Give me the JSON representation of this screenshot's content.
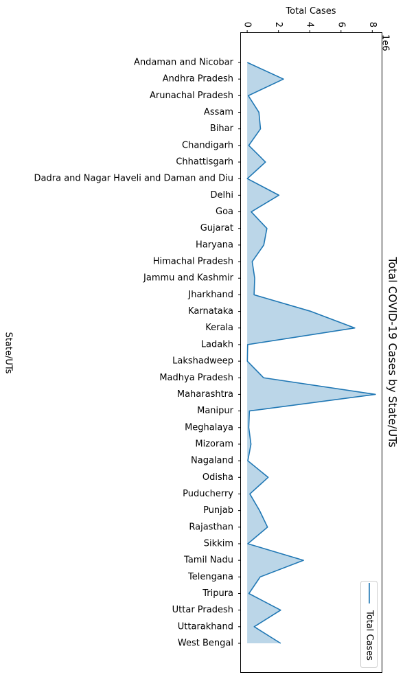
{
  "chart_data": {
    "type": "area",
    "title": "Total COVID-19 Cases by State/UTs",
    "xlabel": "Total Cases",
    "ylabel": "State/UTs",
    "x_offset_label": "1e6",
    "x_ticks": [
      0,
      2,
      4,
      6,
      8
    ],
    "xlim": [
      -0.4,
      8.6
    ],
    "grid": false,
    "legend": {
      "position": "bottom-right",
      "entries": [
        "Total Cases"
      ]
    },
    "colors": {
      "line": "#1f77b4",
      "fill": "#1f77b4"
    },
    "categories": [
      "Andaman and Nicobar",
      "Andhra Pradesh",
      "Arunachal Pradesh",
      "Assam",
      "Bihar",
      "Chandigarh",
      "Chhattisgarh",
      "Dadra and Nagar Haveli and Daman and Diu",
      "Delhi",
      "Goa",
      "Gujarat",
      "Haryana",
      "Himachal Pradesh",
      "Jammu and Kashmir",
      "Jharkhand",
      "Karnataka",
      "Kerala",
      "Ladakh",
      "Lakshadweep",
      "Madhya Pradesh",
      "Maharashtra",
      "Manipur",
      "Meghalaya",
      "Mizoram",
      "Nagaland",
      "Odisha",
      "Puducherry",
      "Punjab",
      "Rajasthan",
      "Sikkim",
      "Tamil Nadu",
      "Telengana",
      "Tripura",
      "Uttar Pradesh",
      "Uttarakhand",
      "West Bengal"
    ],
    "series": [
      {
        "name": "Total Cases",
        "values": [
          0.01,
          2.32,
          0.07,
          0.75,
          0.85,
          0.1,
          1.17,
          0.01,
          2.03,
          0.26,
          1.26,
          1.06,
          0.32,
          0.48,
          0.44,
          4.08,
          6.88,
          0.03,
          0.01,
          1.05,
          8.2,
          0.14,
          0.1,
          0.24,
          0.04,
          1.34,
          0.17,
          0.79,
          1.3,
          0.04,
          3.6,
          0.83,
          0.11,
          2.14,
          0.45,
          2.14
        ]
      }
    ]
  }
}
